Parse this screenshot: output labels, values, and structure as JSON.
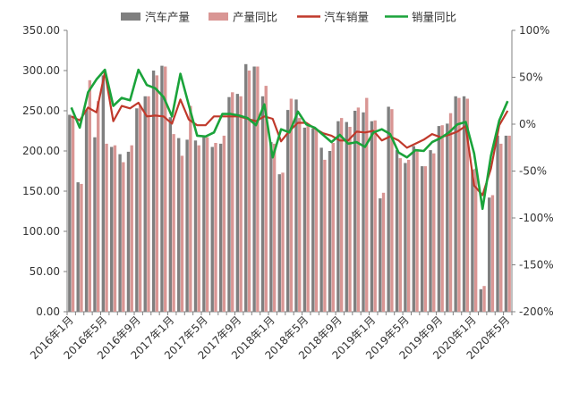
{
  "chart_data": {
    "type": "bar+line",
    "legend": {
      "placement": "top",
      "items": [
        {
          "label": "汽车产量",
          "kind": "bar",
          "color": "#7f7f7f"
        },
        {
          "label": "产量同比",
          "kind": "bar",
          "color": "#d99694"
        },
        {
          "label": "汽车销量",
          "kind": "line",
          "color": "#c0392b"
        },
        {
          "label": "销量同比",
          "kind": "line",
          "color": "#1aa33a"
        }
      ]
    },
    "left_axis": {
      "ylim": [
        0,
        350
      ],
      "ticks": [
        "0.00",
        "50.00",
        "100.00",
        "150.00",
        "200.00",
        "250.00",
        "300.00",
        "350.00"
      ]
    },
    "right_axis": {
      "ylim": [
        -200,
        100
      ],
      "ticks": [
        "-200%",
        "-150%",
        "-100%",
        "-50%",
        "0%",
        "50%",
        "100%"
      ]
    },
    "x_tick_labels": [
      {
        "index": 0,
        "label": "2016年1月"
      },
      {
        "index": 4,
        "label": "2016年5月"
      },
      {
        "index": 8,
        "label": "2016年9月"
      },
      {
        "index": 12,
        "label": "2017年1月"
      },
      {
        "index": 16,
        "label": "2017年5月"
      },
      {
        "index": 20,
        "label": "2017年9月"
      },
      {
        "index": 24,
        "label": "2018年1月"
      },
      {
        "index": 28,
        "label": "2018年5月"
      },
      {
        "index": 32,
        "label": "2018年9月"
      },
      {
        "index": 36,
        "label": "2019年1月"
      },
      {
        "index": 40,
        "label": "2019年5月"
      },
      {
        "index": 44,
        "label": "2019年9月"
      },
      {
        "index": 48,
        "label": "2020年1月"
      },
      {
        "index": 52,
        "label": "2020年5月"
      }
    ],
    "series": [
      {
        "name": "汽车产量",
        "axis": "left",
        "kind": "bar",
        "color": "#7f7f7f",
        "values": [
          245,
          161,
          251,
          217,
          294,
          205,
          196,
          199,
          253,
          268,
          300,
          306,
          242,
          216,
          214,
          213,
          217,
          205,
          209,
          267,
          271,
          308,
          305,
          268,
          211,
          171,
          251,
          264,
          229,
          228,
          204,
          200,
          237,
          236,
          250,
          248,
          237,
          141,
          255,
          201,
          185,
          206,
          181,
          201,
          231,
          234,
          268,
          268,
          177,
          28,
          142,
          219,
          219
        ]
      },
      {
        "name": "产量同比",
        "axis": "left",
        "kind": "bar",
        "color": "#d99694",
        "values": [
          242,
          159,
          288,
          262,
          209,
          207,
          186,
          207,
          256,
          268,
          294,
          305,
          221,
          194,
          256,
          207,
          217,
          210,
          219,
          273,
          268,
          300,
          305,
          281,
          209,
          173,
          265,
          241,
          231,
          226,
          189,
          210,
          241,
          230,
          254,
          266,
          238,
          148,
          252,
          191,
          189,
          202,
          181,
          197,
          232,
          247,
          266,
          265,
          178,
          32,
          145,
          209,
          219
        ]
      },
      {
        "name": "汽车销量",
        "axis": "left",
        "kind": "line",
        "color": "#c0392b",
        "values": [
          243,
          238,
          254,
          248,
          298,
          237,
          256,
          253,
          260,
          243,
          244,
          243,
          234,
          264,
          239,
          232,
          232,
          243,
          243,
          243,
          243,
          240,
          237,
          243,
          240,
          212,
          225,
          235,
          235,
          228,
          222,
          219,
          213,
          213,
          224,
          223,
          225,
          213,
          218,
          213,
          204,
          209,
          214,
          221,
          217,
          220,
          224,
          231,
          157,
          145,
          178,
          232,
          250
        ]
      },
      {
        "name": "销量同比",
        "axis": "left",
        "kind": "line",
        "color": "#1aa33a",
        "values": [
          254,
          229,
          273,
          289,
          301,
          256,
          266,
          263,
          301,
          282,
          278,
          267,
          243,
          296,
          257,
          219,
          218,
          223,
          246,
          246,
          244,
          241,
          232,
          258,
          192,
          227,
          223,
          249,
          233,
          229,
          220,
          211,
          220,
          209,
          211,
          205,
          223,
          227,
          221,
          198,
          192,
          201,
          200,
          211,
          216,
          223,
          233,
          236,
          197,
          128,
          194,
          238,
          262
        ]
      }
    ]
  }
}
